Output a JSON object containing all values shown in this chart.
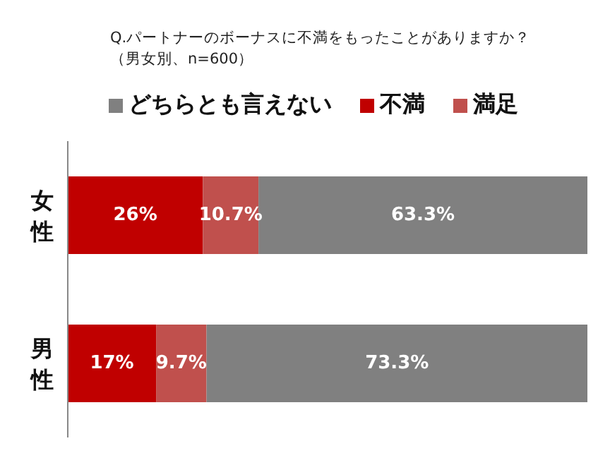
{
  "chart_data": {
    "type": "bar",
    "orientation": "horizontal",
    "stacked": true,
    "title": "Q.パートナーのボーナスに不満をもったことがありますか？",
    "subtitle": "（男女別、n=600）",
    "categories": [
      "女性",
      "男性"
    ],
    "xlim": [
      0,
      100
    ],
    "tick_labels": "y",
    "legend": "top",
    "grid": false,
    "series": [
      {
        "name": "不満",
        "color": "#c00000",
        "values": [
          26,
          17
        ],
        "value_labels": [
          "26%",
          "17%"
        ]
      },
      {
        "name": "満足",
        "color": "#c0504d",
        "values": [
          10.7,
          9.7
        ],
        "value_labels": [
          "10.7%",
          "9.7%"
        ]
      },
      {
        "name": "どちらとも言えない",
        "color": "#808080",
        "values": [
          63.3,
          73.3
        ],
        "value_labels": [
          "63.3%",
          "73.3%"
        ]
      }
    ]
  }
}
